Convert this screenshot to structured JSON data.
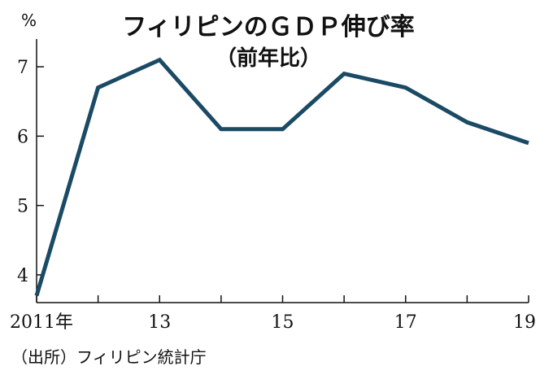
{
  "chart_data": {
    "type": "line",
    "title": "フィリピンのＧＤＰ伸び率",
    "subtitle": "（前年比）",
    "ylabel": "%",
    "ylim": [
      3.6,
      7.4
    ],
    "yticks": [
      4,
      5,
      6,
      7
    ],
    "x": [
      2011,
      2012,
      2013,
      2014,
      2015,
      2016,
      2017,
      2018,
      2019
    ],
    "values": [
      3.7,
      6.7,
      7.1,
      6.1,
      6.1,
      6.9,
      6.7,
      6.2,
      5.9
    ],
    "xtick_labels": [
      {
        "x": 2011,
        "label": "2011年"
      },
      {
        "x": 2013,
        "label": "13"
      },
      {
        "x": 2015,
        "label": "15"
      },
      {
        "x": 2017,
        "label": "17"
      },
      {
        "x": 2019,
        "label": "19"
      }
    ],
    "source": "（出所）フィリピン統計庁",
    "line_color": "#1b4a64"
  }
}
